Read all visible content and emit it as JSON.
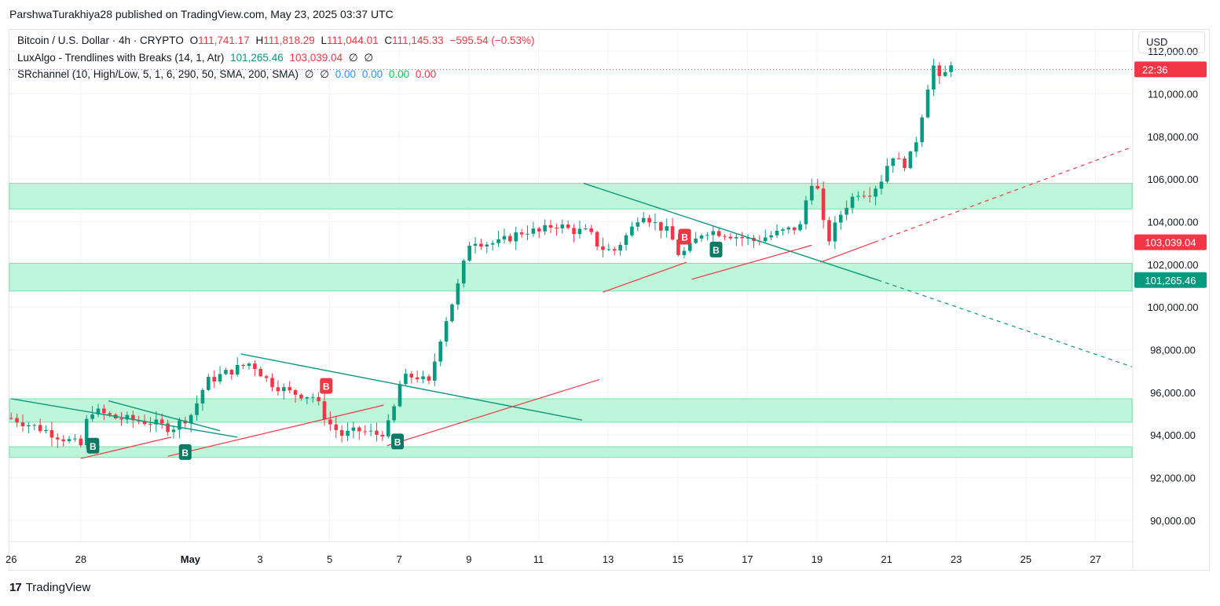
{
  "header": {
    "published": "ParshwaTurakhiya28 published on TradingView.com, May 23, 2025 03:37 UTC"
  },
  "legend": {
    "symbol": "Bitcoin / U.S. Dollar · 4h · CRYPTO",
    "o_label": "O",
    "o": "111,741.17",
    "h_label": "H",
    "h": "111,818.29",
    "l_label": "L",
    "l": "111,044.01",
    "c_label": "C",
    "c": "111,145.33",
    "chg": "−595.54 (−0.53%)",
    "ind1": "LuxAlgo - Trendlines with Breaks (14, 1, Atr)",
    "ind1_v1": "101,265.46",
    "ind1_v2": "103,039.04",
    "ind1_v3": "∅",
    "ind1_v4": "∅",
    "ind2": "SRchannel (10, High/Low, 5, 1, 6, 290, 50, SMA, 200, SMA)",
    "ind2_v1": "∅",
    "ind2_v2": "∅",
    "ind2_v3": "0.00",
    "ind2_v4": "0.00",
    "ind2_v5": "0.00",
    "ind2_v6": "0.00"
  },
  "currency": "USD",
  "footer": {
    "logo_mark": "17",
    "logo_text": "TradingView"
  },
  "colors": {
    "up": "#089981",
    "down": "#f23645",
    "zone": "#b9f6d6",
    "zone_line": "#7be0ad",
    "tl_down": "#089981",
    "tl_up": "#f23645"
  },
  "chart_data": {
    "type": "candlestick",
    "title": "Bitcoin / U.S. Dollar · 4h · CRYPTO",
    "ylim": [
      89000,
      113000
    ],
    "y_ticks": [
      90000,
      92000,
      94000,
      96000,
      98000,
      100000,
      102000,
      104000,
      106000,
      108000,
      110000,
      112000
    ],
    "y_tick_labels": [
      "90,000.00",
      "92,000.00",
      "94,000.00",
      "96,000.00",
      "98,000.00",
      "100,000.00",
      "102,000.00",
      "104,000.00",
      "106,000.00",
      "108,000.00",
      "110,000.00",
      "112,000.00"
    ],
    "x_ticks": [
      {
        "d": 0,
        "label": "26"
      },
      {
        "d": 2,
        "label": "28"
      },
      {
        "d": 5.15,
        "label": "May"
      },
      {
        "d": 7.15,
        "label": "3"
      },
      {
        "d": 9.15,
        "label": "5"
      },
      {
        "d": 11.15,
        "label": "7"
      },
      {
        "d": 13.15,
        "label": "9"
      },
      {
        "d": 15.15,
        "label": "11"
      },
      {
        "d": 17.15,
        "label": "13"
      },
      {
        "d": 19.15,
        "label": "15"
      },
      {
        "d": 21.15,
        "label": "17"
      },
      {
        "d": 23.15,
        "label": "19"
      },
      {
        "d": 25.15,
        "label": "21"
      },
      {
        "d": 27.15,
        "label": "23"
      },
      {
        "d": 29.15,
        "label": "25"
      },
      {
        "d": 31.15,
        "label": "27"
      }
    ],
    "x_range_days": [
      -0.05,
      32.2
    ],
    "waypoints": [
      [
        0,
        94800
      ],
      [
        1,
        94200
      ],
      [
        2,
        93500
      ],
      [
        2.25,
        95200
      ],
      [
        3,
        94800
      ],
      [
        4,
        94600
      ],
      [
        4.6,
        94300
      ],
      [
        5.2,
        95000
      ],
      [
        5.6,
        96500
      ],
      [
        6.3,
        97000
      ],
      [
        6.9,
        97400
      ],
      [
        7.4,
        96500
      ],
      [
        8,
        96000
      ],
      [
        8.7,
        95800
      ],
      [
        9.1,
        94600
      ],
      [
        9.5,
        94000
      ],
      [
        10,
        94200
      ],
      [
        10.6,
        94000
      ],
      [
        10.9,
        94600
      ],
      [
        11.2,
        96600
      ],
      [
        11.6,
        96800
      ],
      [
        12.0,
        96400
      ],
      [
        12.4,
        99000
      ],
      [
        12.8,
        100800
      ],
      [
        13.2,
        103200
      ],
      [
        13.6,
        103000
      ],
      [
        14,
        103000
      ],
      [
        14.5,
        103400
      ],
      [
        14.8,
        103600
      ],
      [
        15.2,
        103500
      ],
      [
        15.6,
        103900
      ],
      [
        16.1,
        103600
      ],
      [
        16.6,
        103500
      ],
      [
        16.9,
        102800
      ],
      [
        17.3,
        102600
      ],
      [
        17.8,
        103600
      ],
      [
        18.1,
        104500
      ],
      [
        18.5,
        103900
      ],
      [
        18.9,
        103500
      ],
      [
        19.2,
        102400
      ],
      [
        19.5,
        102800
      ],
      [
        19.9,
        103600
      ],
      [
        20.4,
        103500
      ],
      [
        20.9,
        103300
      ],
      [
        21.3,
        103100
      ],
      [
        21.7,
        103300
      ],
      [
        22.3,
        103600
      ],
      [
        22.7,
        103800
      ],
      [
        22.9,
        105600
      ],
      [
        23.1,
        106200
      ],
      [
        23.3,
        104000
      ],
      [
        23.5,
        103200
      ],
      [
        23.9,
        104600
      ],
      [
        24.3,
        105400
      ],
      [
        24.7,
        105400
      ],
      [
        25.0,
        106000
      ],
      [
        25.3,
        107200
      ],
      [
        25.6,
        106600
      ],
      [
        25.9,
        107200
      ],
      [
        26.1,
        108500
      ],
      [
        26.3,
        110200
      ],
      [
        26.5,
        111300
      ],
      [
        26.7,
        110500
      ],
      [
        27.0,
        111500
      ],
      [
        27.15,
        111145
      ]
    ],
    "sr_zones": [
      {
        "lo": 104600,
        "hi": 105800
      },
      {
        "lo": 100750,
        "hi": 102050
      },
      {
        "lo": 94600,
        "hi": 95700
      },
      {
        "lo": 92950,
        "hi": 93450
      }
    ],
    "trendlines_down": [
      {
        "from": [
          0,
          95700
        ],
        "to": [
          6.5,
          93900
        ]
      },
      {
        "from": [
          2.8,
          95600
        ],
        "to": [
          6.0,
          94200
        ]
      },
      {
        "from": [
          6.6,
          97800
        ],
        "to": [
          16.4,
          94700
        ]
      },
      {
        "from": [
          16.45,
          105800
        ],
        "to": [
          24.9,
          101265
        ],
        "extend_to": [
          32.2,
          97200
        ]
      }
    ],
    "trendlines_up": [
      {
        "from": [
          2.0,
          92900
        ],
        "to": [
          4.6,
          93900
        ]
      },
      {
        "from": [
          4.5,
          93000
        ],
        "to": [
          10.7,
          95400
        ]
      },
      {
        "from": [
          10.8,
          93500
        ],
        "to": [
          16.9,
          96600
        ]
      },
      {
        "from": [
          17.0,
          100700
        ],
        "to": [
          19.4,
          102100
        ]
      },
      {
        "from": [
          19.55,
          101300
        ],
        "to": [
          23.0,
          102900
        ]
      },
      {
        "from": [
          23.25,
          102100
        ],
        "to": [
          24.8,
          103039
        ],
        "extend_to": [
          32.2,
          107500
        ]
      }
    ],
    "markers": [
      {
        "d": 2.35,
        "price": 93500,
        "label": "B",
        "kind": "buy"
      },
      {
        "d": 5.0,
        "price": 93200,
        "label": "B",
        "kind": "buy"
      },
      {
        "d": 11.1,
        "price": 93700,
        "label": "B",
        "kind": "buy"
      },
      {
        "d": 9.05,
        "price": 96300,
        "label": "B",
        "kind": "sell"
      },
      {
        "d": 19.35,
        "price": 103300,
        "label": "B",
        "kind": "sell"
      },
      {
        "d": 20.25,
        "price": 102700,
        "label": "B",
        "kind": "buy"
      }
    ],
    "price_line": 111145.33,
    "price_labels": [
      {
        "price": 111145.33,
        "text": "22:36",
        "color": "#f23645"
      },
      {
        "price": 103039.04,
        "text": "103,039.04",
        "color": "#f23645"
      },
      {
        "price": 101265.46,
        "text": "101,265.46",
        "color": "#089981"
      }
    ]
  }
}
